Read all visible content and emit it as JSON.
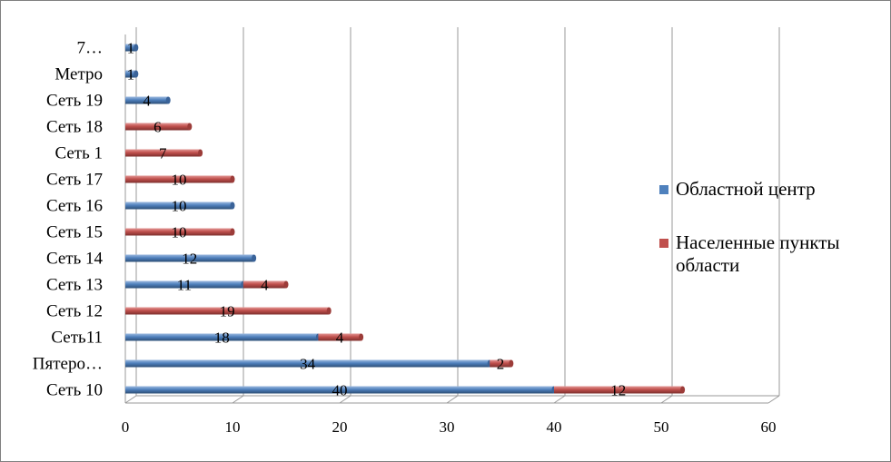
{
  "chart_data": {
    "type": "bar",
    "orientation": "horizontal",
    "stacked": true,
    "categories": [
      "Сеть 10",
      "Пятеро…",
      "Сеть11",
      "Сеть 12",
      "Сеть 13",
      "Сеть 14",
      "Сеть 15",
      "Сеть 16",
      "Сеть 17",
      "Сеть 1",
      "Сеть 18",
      "Сеть 19",
      "Метро",
      "7…"
    ],
    "series": [
      {
        "name": "Областной центр",
        "color": "#4f81bd",
        "values": [
          40,
          34,
          18,
          null,
          11,
          12,
          null,
          10,
          null,
          null,
          null,
          4,
          1,
          1
        ]
      },
      {
        "name": "Населенные пункты области",
        "color": "#c0504d",
        "values": [
          12,
          2,
          4,
          19,
          4,
          null,
          10,
          null,
          10,
          7,
          6,
          null,
          null,
          null
        ]
      }
    ],
    "x_ticks": [
      "0",
      "10",
      "20",
      "30",
      "40",
      "50",
      "60"
    ],
    "xlim": [
      0,
      60
    ],
    "grid": true,
    "legend_position": "right",
    "title": "",
    "xlabel": "",
    "ylabel": ""
  }
}
